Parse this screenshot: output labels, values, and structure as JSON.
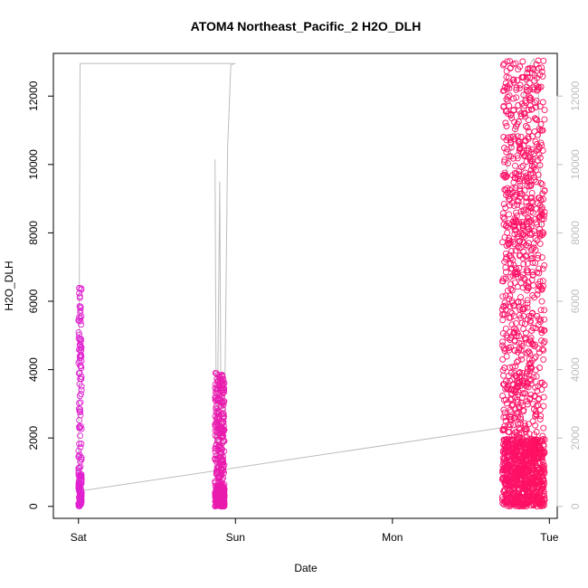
{
  "chart_data": {
    "type": "scatter",
    "title": "ATOM4 Northeast_Pacific_2 H2O_DLH",
    "xlabel": "Date",
    "ylabel": "H2O_DLH",
    "x_ticks": [
      "Sat",
      "Sun",
      "Mon",
      "Tue"
    ],
    "x_tick_values": [
      0,
      1,
      2,
      3
    ],
    "xlim": [
      -0.16,
      3.05
    ],
    "ylim": [
      -350,
      13250
    ],
    "y_ticks": [
      0,
      2000,
      4000,
      6000,
      8000,
      10000,
      12000
    ],
    "y_tick_labels": [
      "0",
      "2000",
      "4000",
      "6000",
      "8000",
      "10000",
      "12000"
    ],
    "right_axis": {
      "ticks": [
        0,
        2000,
        4000,
        6000,
        8000,
        10000,
        12000
      ],
      "labels": [
        "0",
        "2000",
        "4000",
        "6000",
        "8000",
        "10000",
        "12000"
      ],
      "color": "#bdbdbd"
    },
    "grid": false,
    "legend": "none",
    "colors": {
      "points_start": "#e020d0",
      "points_end": "#ff1060",
      "line": "#bdbdbd",
      "axis": "#000000"
    },
    "segments": [
      {
        "x_start": 0.0,
        "x_end": 0.02,
        "y_min": 0,
        "y_max": 6430,
        "count": 160
      },
      {
        "x_start": 0.87,
        "x_end": 0.93,
        "y_min": 0,
        "y_max": 3900,
        "count": 420
      },
      {
        "x_start": 2.7,
        "x_end": 2.97,
        "y_min": 0,
        "y_max": 13150,
        "count": 1600
      }
    ],
    "line_series": [
      {
        "x": [
          0.0,
          0.01,
          0.01,
          1.0,
          1.0
        ],
        "y": [
          0,
          12950,
          12950,
          12950,
          12950
        ]
      },
      {
        "x": [
          0.01,
          2.7
        ],
        "y": [
          450,
          2300
        ]
      },
      {
        "x": [
          0.87,
          0.88,
          0.9,
          0.91,
          0.93,
          0.95,
          0.96,
          0.97,
          0.99
        ],
        "y": [
          10150,
          200,
          9500,
          300,
          2200,
          10500,
          11600,
          12900,
          12950
        ]
      },
      {
        "x": [
          2.72,
          2.76,
          2.79,
          2.83,
          2.86,
          2.9,
          2.93,
          2.95
        ],
        "y": [
          9700,
          10500,
          11200,
          11800,
          12800,
          13100,
          12200,
          8200
        ]
      }
    ]
  }
}
